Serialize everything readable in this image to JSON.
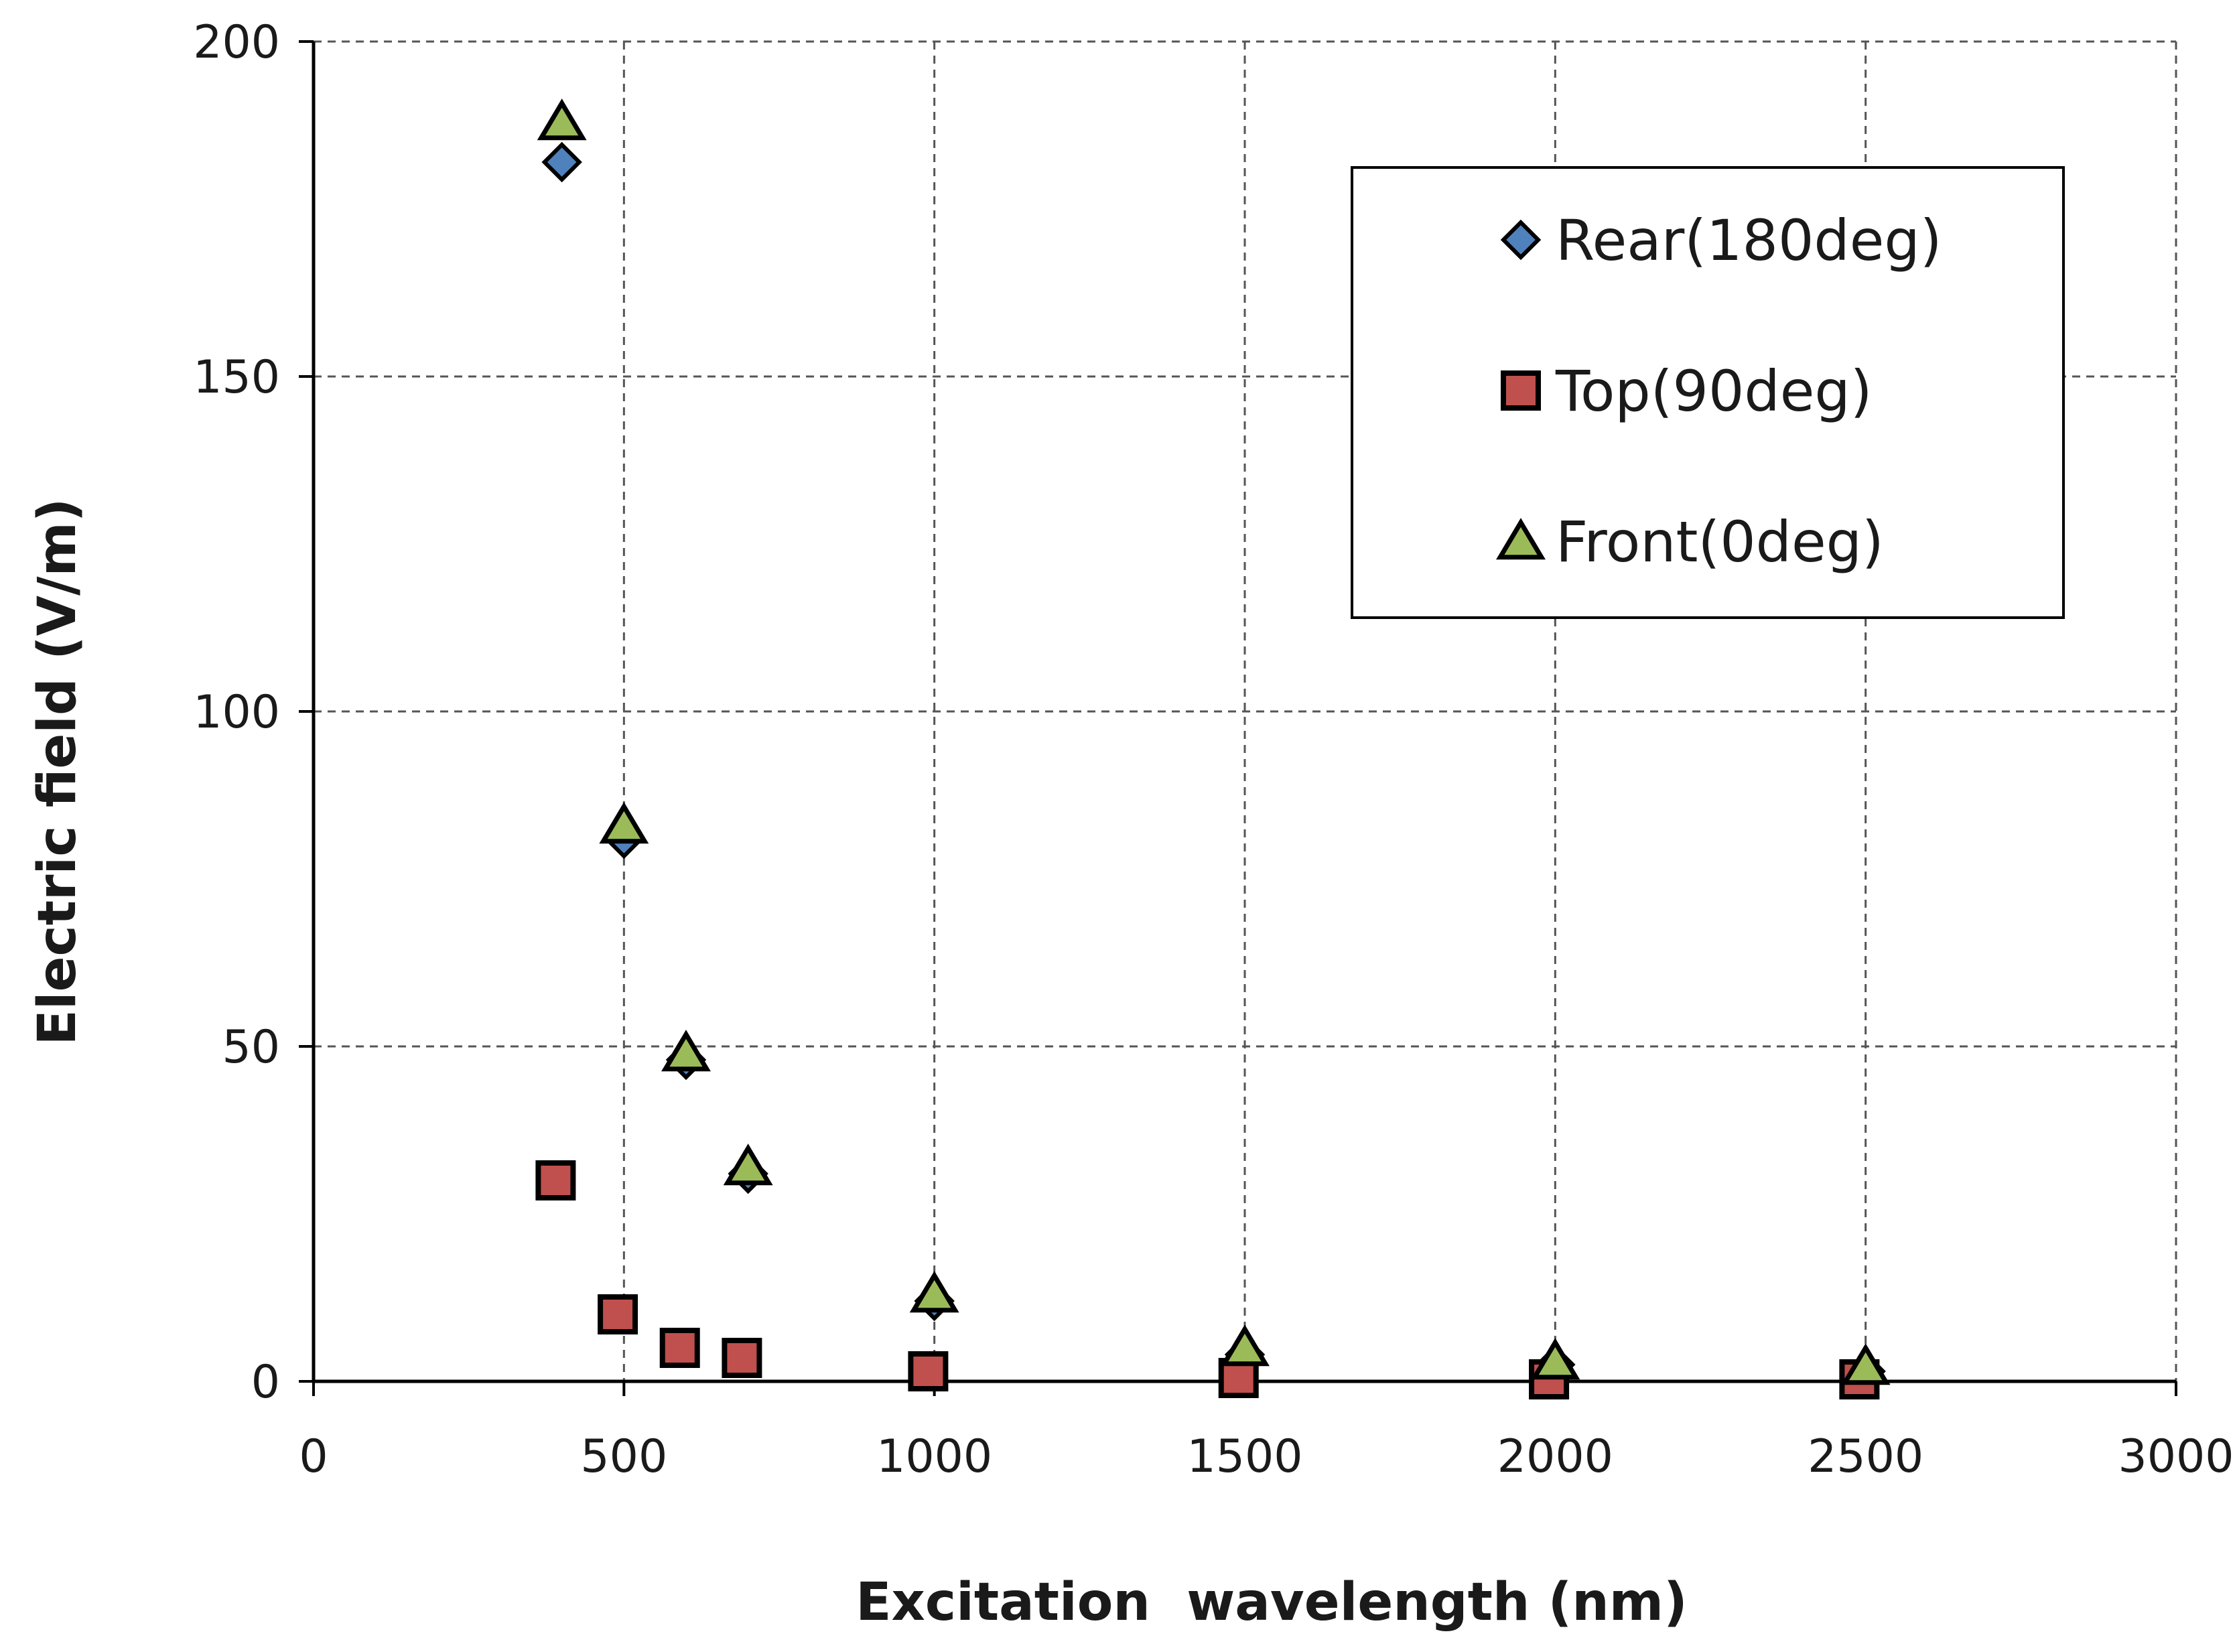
{
  "chart_data": {
    "type": "scatter",
    "title": "",
    "xlabel": "Excitation  wavelength (nm)",
    "ylabel": "Electric field (V/m)",
    "xlim": [
      0,
      3000
    ],
    "ylim": [
      0,
      200
    ],
    "xticks": [
      0,
      500,
      1000,
      1500,
      2000,
      2500,
      3000
    ],
    "yticks": [
      0,
      50,
      100,
      150,
      200
    ],
    "xtick_labels": [
      "0",
      "500",
      "1000",
      "1500",
      "2000",
      "2500",
      "3000"
    ],
    "ytick_labels": [
      "0",
      "50",
      "100",
      "150",
      "200"
    ],
    "grid": true,
    "legend_position": "top-right",
    "series": [
      {
        "name": "Rear(180deg)",
        "marker": "diamond",
        "color": "#4f81bd",
        "x": [
          400,
          500,
          600,
          700,
          1000,
          1500,
          2000,
          2500
        ],
        "y": [
          182,
          81,
          48,
          31,
          12,
          4,
          2.5,
          1.5
        ]
      },
      {
        "name": "Top(90deg)",
        "marker": "square",
        "color": "#c0504d",
        "x": [
          390,
          490,
          590,
          690,
          990,
          1490,
          1990,
          2490
        ],
        "y": [
          30,
          10,
          5,
          3.5,
          1.5,
          0.5,
          0.3,
          0.3
        ]
      },
      {
        "name": "Front(0deg)",
        "marker": "triangle",
        "color": "#9bbb59",
        "x": [
          400,
          500,
          600,
          700,
          1000,
          1500,
          2000,
          2500
        ],
        "y": [
          188,
          83,
          49,
          32,
          13,
          5,
          3,
          2.2
        ]
      }
    ]
  }
}
